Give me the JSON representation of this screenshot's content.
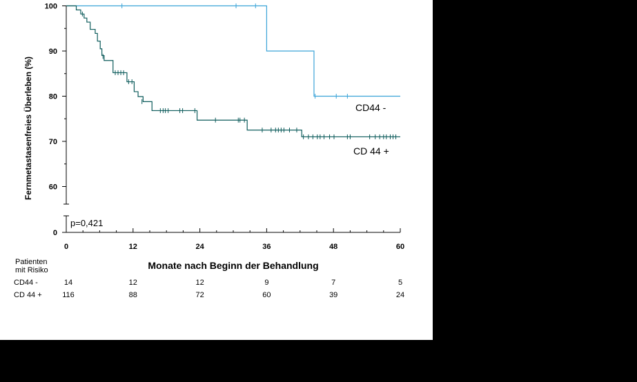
{
  "chart_data": {
    "type": "line",
    "subtype": "kaplan-meier",
    "ylabel": "Fernmetastasenfreies Überleben (%)",
    "xlabel": "Monate nach Beginn der Behandlung",
    "xlim": [
      0,
      60
    ],
    "ylim": [
      0,
      100
    ],
    "x_ticks": [
      0,
      12,
      24,
      36,
      48,
      60
    ],
    "y_ticks": [
      0,
      60,
      70,
      80,
      90,
      100
    ],
    "y_axis_break": true,
    "grid": false,
    "annotation": "p=0,421",
    "series": [
      {
        "name": "CD44 -",
        "color": "#3aa3d8",
        "steps": [
          [
            0,
            100
          ],
          [
            36,
            90
          ],
          [
            44.5,
            80
          ],
          [
            60,
            80
          ]
        ],
        "censored": [
          [
            10,
            100
          ],
          [
            30.5,
            100
          ],
          [
            34,
            100
          ],
          [
            44.7,
            80
          ],
          [
            48.5,
            80
          ],
          [
            50.5,
            80
          ]
        ]
      },
      {
        "name": "CD 44 +",
        "color": "#0c5b5b",
        "steps": [
          [
            0,
            100
          ],
          [
            1.8,
            99.1
          ],
          [
            2.6,
            98.2
          ],
          [
            3.2,
            97.3
          ],
          [
            3.7,
            96.4
          ],
          [
            4.3,
            94.8
          ],
          [
            5.2,
            93.9
          ],
          [
            5.6,
            92.2
          ],
          [
            6.1,
            90.5
          ],
          [
            6.4,
            89.0
          ],
          [
            6.8,
            87.9
          ],
          [
            8.4,
            85.2
          ],
          [
            10.9,
            83.2
          ],
          [
            12.2,
            81.0
          ],
          [
            12.9,
            79.9
          ],
          [
            13.8,
            78.8
          ],
          [
            15.4,
            76.8
          ],
          [
            23.5,
            74.7
          ],
          [
            32.5,
            72.5
          ],
          [
            42.3,
            71.0
          ],
          [
            60,
            71.0
          ]
        ],
        "censored": [
          [
            2.9,
            98.2
          ],
          [
            6.6,
            88.8
          ],
          [
            8.8,
            85.2
          ],
          [
            9.3,
            85.2
          ],
          [
            9.8,
            85.2
          ],
          [
            10.3,
            85.2
          ],
          [
            11.2,
            83.2
          ],
          [
            11.8,
            83.2
          ],
          [
            13.6,
            78.8
          ],
          [
            16.9,
            76.8
          ],
          [
            17.4,
            76.8
          ],
          [
            17.8,
            76.8
          ],
          [
            18.3,
            76.8
          ],
          [
            20.4,
            76.8
          ],
          [
            20.9,
            76.8
          ],
          [
            23.1,
            76.8
          ],
          [
            26.8,
            74.7
          ],
          [
            30.9,
            74.7
          ],
          [
            31.2,
            74.7
          ],
          [
            32.0,
            74.7
          ],
          [
            35.2,
            72.5
          ],
          [
            36.8,
            72.5
          ],
          [
            37.6,
            72.5
          ],
          [
            38.1,
            72.5
          ],
          [
            38.6,
            72.5
          ],
          [
            39.1,
            72.5
          ],
          [
            40.1,
            72.5
          ],
          [
            41.4,
            72.5
          ],
          [
            42.6,
            71.0
          ],
          [
            43.5,
            71.0
          ],
          [
            44.3,
            71.0
          ],
          [
            45.1,
            71.0
          ],
          [
            45.6,
            71.0
          ],
          [
            46.3,
            71.0
          ],
          [
            47.3,
            71.0
          ],
          [
            48.1,
            71.0
          ],
          [
            50.5,
            71.0
          ],
          [
            51.0,
            71.0
          ],
          [
            54.5,
            71.0
          ],
          [
            55.5,
            71.0
          ],
          [
            56.3,
            71.0
          ],
          [
            57.0,
            71.0
          ],
          [
            57.5,
            71.0
          ],
          [
            58.2,
            71.0
          ],
          [
            58.7,
            71.0
          ],
          [
            59.2,
            71.0
          ]
        ]
      }
    ],
    "risk_table": {
      "header": "Patienten\nmit Risiko",
      "header_lines": [
        "Patienten",
        "mit Risiko"
      ],
      "times": [
        0,
        12,
        24,
        36,
        48,
        60
      ],
      "rows": [
        {
          "label": "CD44  -",
          "values": [
            "14",
            "12",
            "12",
            "9",
            "7",
            "5"
          ]
        },
        {
          "label": "CD 44 +",
          "values": [
            "116",
            "88",
            "72",
            "60",
            "39",
            "24"
          ]
        }
      ]
    }
  }
}
